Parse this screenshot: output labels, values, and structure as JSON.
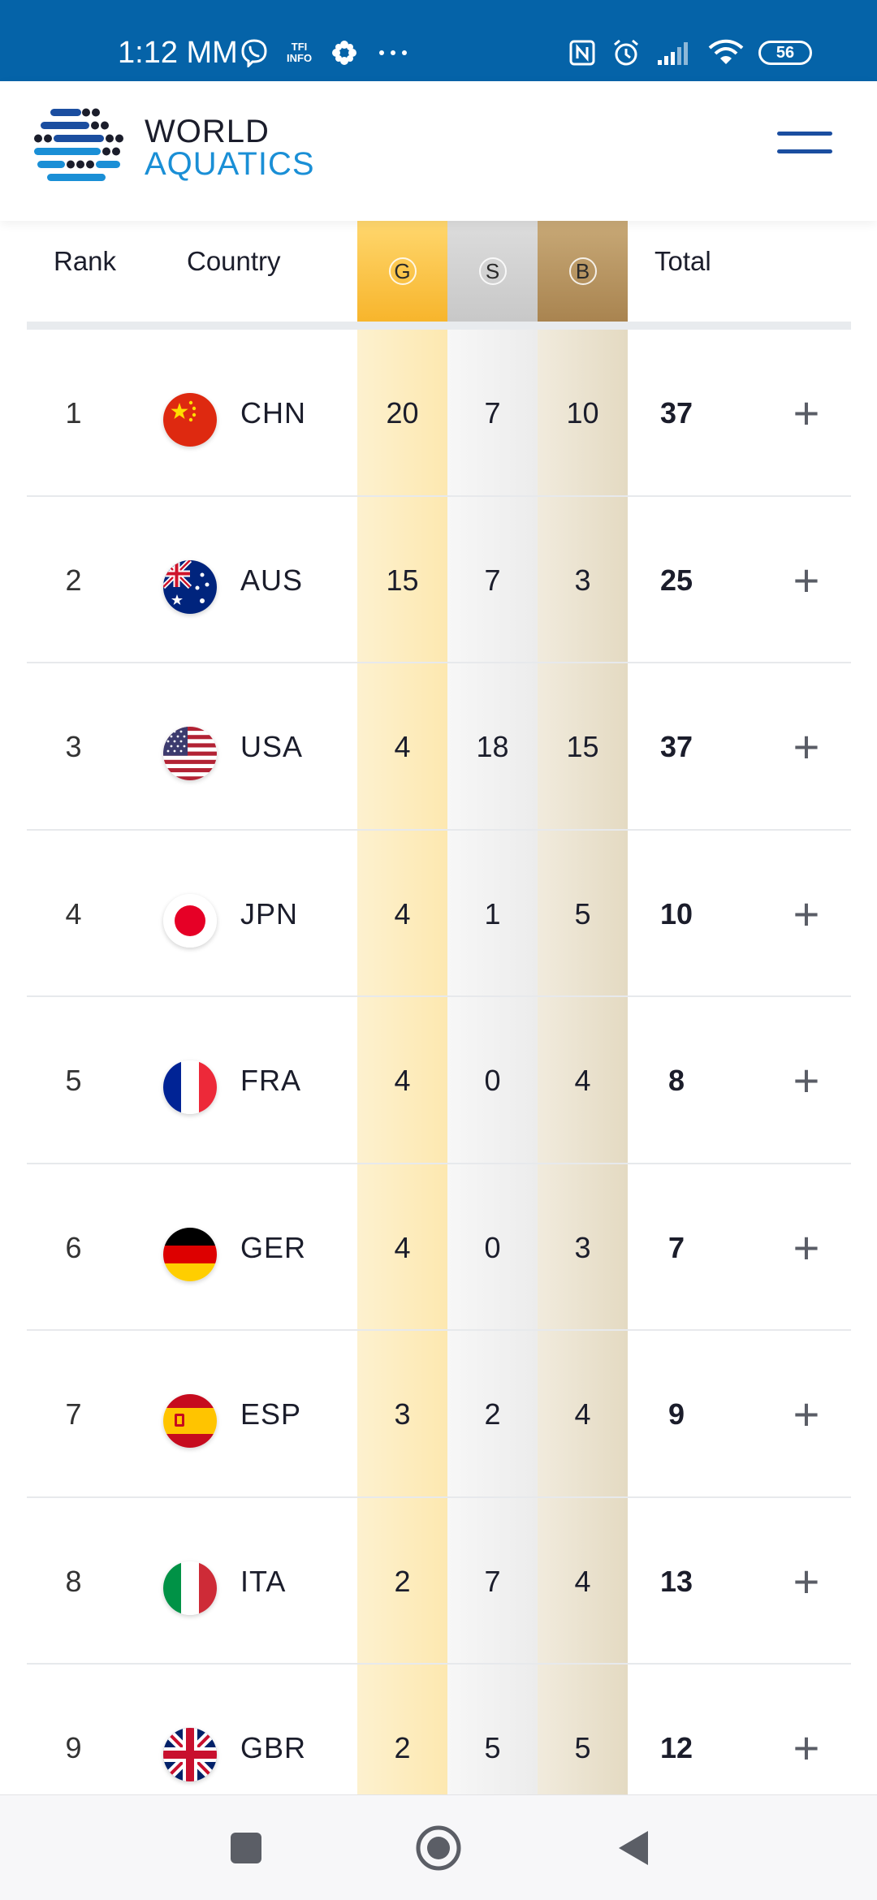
{
  "status_bar": {
    "time": "1:12 MM",
    "tiny_label": "TFI\nINFO",
    "battery": "56",
    "icons": [
      "viber-icon",
      "tfi-info-icon",
      "flower-icon",
      "more-icon",
      "nfc-icon",
      "alarm-icon",
      "signal-icon",
      "wifi-icon",
      "battery-icon"
    ]
  },
  "header": {
    "brand_line1": "WORLD",
    "brand_line2": "AQUATICS",
    "menu_icon": "hamburger-icon",
    "brand_color": "#1a8fd6",
    "header_bar_color": "#0563a8"
  },
  "table": {
    "headers": {
      "rank": "Rank",
      "country": "Country",
      "gold": "G",
      "silver": "S",
      "bronze": "B",
      "total": "Total"
    },
    "rows": [
      {
        "rank": "1",
        "country": "CHN",
        "flag": "china-flag-icon",
        "gold": "20",
        "silver": "7",
        "bronze": "10",
        "total": "37",
        "expand": "+"
      },
      {
        "rank": "2",
        "country": "AUS",
        "flag": "australia-flag-icon",
        "gold": "15",
        "silver": "7",
        "bronze": "3",
        "total": "25",
        "expand": "+"
      },
      {
        "rank": "3",
        "country": "USA",
        "flag": "usa-flag-icon",
        "gold": "4",
        "silver": "18",
        "bronze": "15",
        "total": "37",
        "expand": "+"
      },
      {
        "rank": "4",
        "country": "JPN",
        "flag": "japan-flag-icon",
        "gold": "4",
        "silver": "1",
        "bronze": "5",
        "total": "10",
        "expand": "+"
      },
      {
        "rank": "5",
        "country": "FRA",
        "flag": "france-flag-icon",
        "gold": "4",
        "silver": "0",
        "bronze": "4",
        "total": "8",
        "expand": "+"
      },
      {
        "rank": "6",
        "country": "GER",
        "flag": "germany-flag-icon",
        "gold": "4",
        "silver": "0",
        "bronze": "3",
        "total": "7",
        "expand": "+"
      },
      {
        "rank": "7",
        "country": "ESP",
        "flag": "spain-flag-icon",
        "gold": "3",
        "silver": "2",
        "bronze": "4",
        "total": "9",
        "expand": "+"
      },
      {
        "rank": "8",
        "country": "ITA",
        "flag": "italy-flag-icon",
        "gold": "2",
        "silver": "7",
        "bronze": "4",
        "total": "13",
        "expand": "+"
      },
      {
        "rank": "9",
        "country": "GBR",
        "flag": "uk-flag-icon",
        "gold": "2",
        "silver": "5",
        "bronze": "5",
        "total": "12",
        "expand": "+"
      }
    ]
  },
  "nav_bar": {
    "icons": [
      "recent-apps-icon",
      "home-icon",
      "back-icon"
    ]
  }
}
